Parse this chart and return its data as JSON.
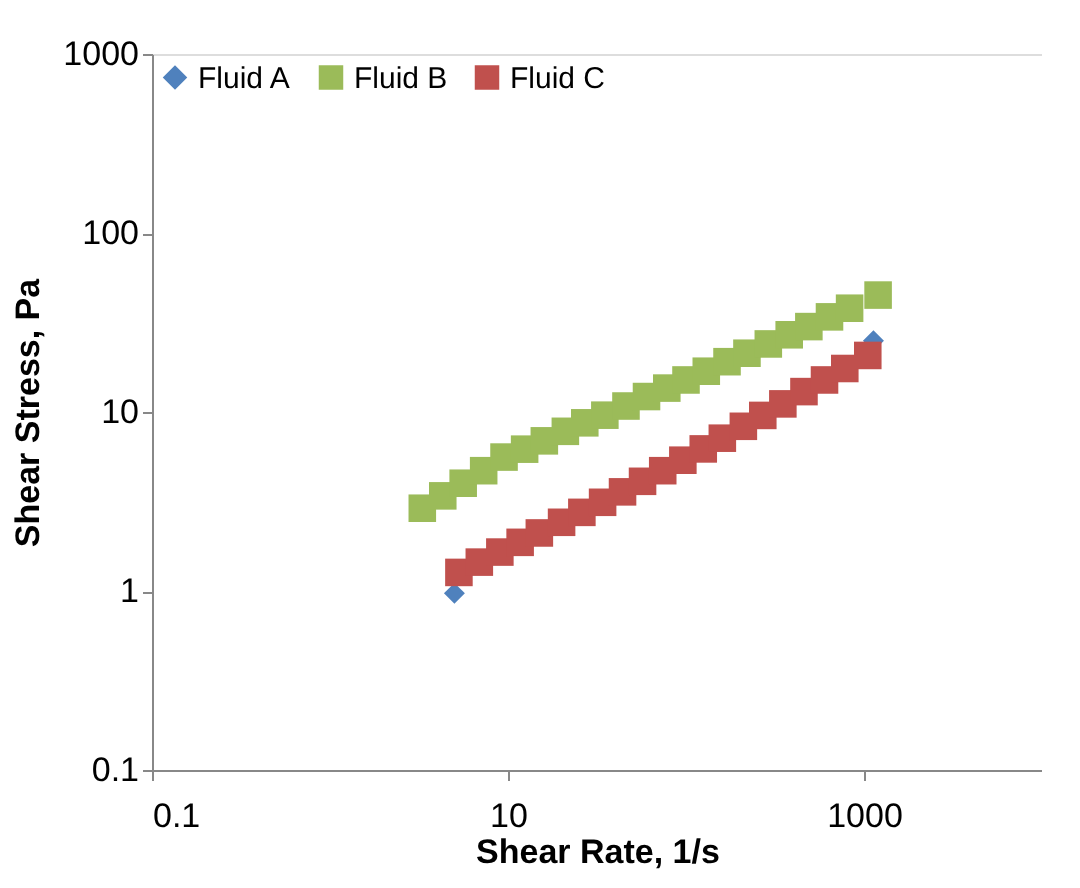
{
  "chart_data": {
    "type": "scatter",
    "xlabel": "Shear Rate,  1/s",
    "ylabel": "Shear Stress, Pa",
    "log": "xy",
    "grid": false,
    "legend": "top left",
    "xlim": [
      0.1,
      10000
    ],
    "xticks": [
      0.1,
      10,
      1000
    ],
    "ylim": [
      0.1,
      1000
    ],
    "yticks": [
      0.1,
      1,
      10,
      100,
      1000
    ],
    "series": [
      {
        "name": "Fluid A",
        "color": "#4f81bd",
        "marker": "diamond",
        "x": [
          5.0,
          1130
        ],
        "values": [
          0.97,
          25
        ]
      },
      {
        "name": "Fluid B",
        "color": "#9bbb59",
        "marker": "square",
        "x": [
          3.3,
          4.3,
          5.6,
          7.3,
          9.5,
          12.4,
          16,
          21,
          27,
          35,
          46,
          60,
          78,
          100,
          130,
          170,
          220,
          290,
          380,
          490,
          640,
          830,
          1200
        ],
        "values": [
          2.9,
          3.4,
          4.0,
          4.7,
          5.6,
          6.2,
          6.9,
          7.8,
          8.7,
          9.6,
          10.8,
          12.2,
          13.6,
          15.1,
          16.9,
          19.1,
          21.3,
          24,
          27,
          30,
          34,
          38,
          45
        ]
      },
      {
        "name": "Fluid C",
        "color": "#c0504d",
        "marker": "square",
        "x": [
          5.3,
          6.9,
          9,
          11.7,
          15,
          20,
          26,
          34,
          44,
          57,
          74,
          96,
          125,
          160,
          210,
          270,
          350,
          460,
          600,
          780,
          1050
        ],
        "values": [
          1.27,
          1.45,
          1.65,
          1.87,
          2.11,
          2.42,
          2.75,
          3.13,
          3.58,
          4.1,
          4.7,
          5.38,
          6.22,
          7.14,
          8.32,
          9.57,
          11.1,
          13.0,
          15.1,
          17.5,
          20.7
        ]
      }
    ]
  }
}
